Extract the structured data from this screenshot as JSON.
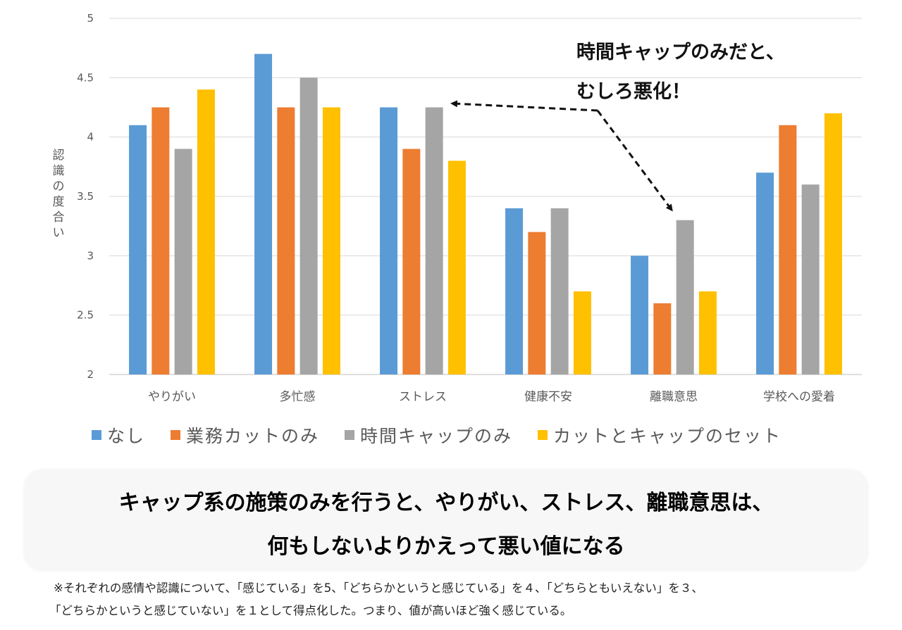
{
  "chart_data": {
    "type": "bar",
    "ylabel": "認識の度合い",
    "ylim": [
      2,
      5
    ],
    "yticks": [
      "2",
      "2.5",
      "3",
      "3.5",
      "4",
      "4.5",
      "5"
    ],
    "grid": true,
    "legend_position": "bottom",
    "categories": [
      "やりがい",
      "多忙感",
      "ストレス",
      "健康不安",
      "離職意思",
      "学校への愛着"
    ],
    "series": [
      {
        "name": "なし",
        "color": "#5B9BD5",
        "values": [
          4.1,
          4.7,
          4.25,
          3.4,
          3.0,
          3.7
        ]
      },
      {
        "name": "業務カットのみ",
        "color": "#ED7D31",
        "values": [
          4.25,
          4.25,
          3.9,
          3.2,
          2.6,
          4.1
        ]
      },
      {
        "name": "時間キャップのみ",
        "color": "#A5A5A5",
        "values": [
          3.9,
          4.5,
          4.25,
          3.4,
          3.3,
          3.6
        ]
      },
      {
        "name": "カットとキャップのセット",
        "color": "#FFC000",
        "values": [
          4.4,
          4.25,
          3.8,
          2.7,
          2.7,
          4.2
        ]
      }
    ],
    "annotation": {
      "line1": "時間キャップのみだと、",
      "line2": "むしろ悪化！"
    }
  },
  "summary": {
    "line1": "キャップ系の施策のみを行うと、やりがい、ストレス、離職意思は、",
    "line2": "何もしないよりかえって悪い値になる"
  },
  "footnote": {
    "line1": "※それぞれの感情や認識について、「感じている」を5、「どちらかというと感じている」を４、「どちらともいえない」を３、",
    "line2": "「どちらかというと感じていない」を１として得点化した。つまり、値が高いほど強く感じている。"
  }
}
